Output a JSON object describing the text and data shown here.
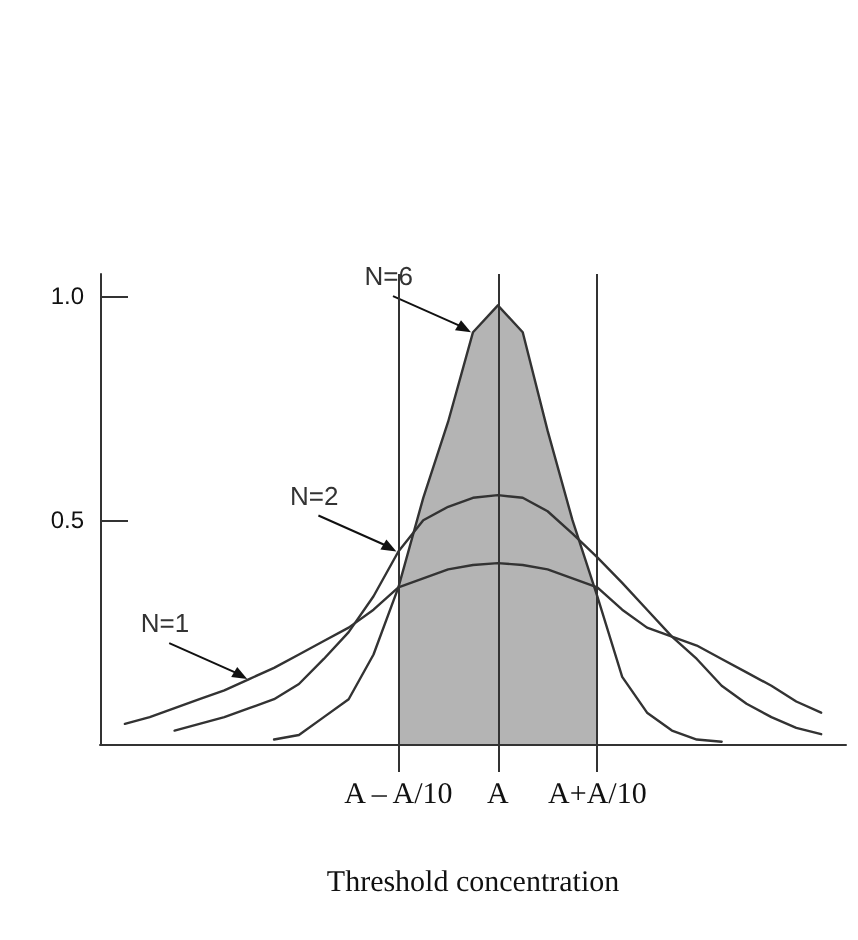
{
  "chart_data": {
    "type": "line",
    "xlabel": "Threshold concentration",
    "categories": [
      null,
      null,
      null,
      null,
      null,
      null,
      null,
      null,
      null,
      null,
      null,
      null,
      "A – A/10",
      null,
      null,
      null,
      "A",
      null,
      null,
      null,
      "A+A/10",
      null,
      null,
      null,
      null,
      null,
      null,
      null,
      null,
      null,
      null
    ],
    "ylim": [
      0,
      1.05
    ],
    "yticks": [
      {
        "value": 0.5,
        "label": "0.5"
      },
      {
        "value": 1.0,
        "label": "1.0"
      }
    ],
    "grid": false,
    "legend": false,
    "marker": "none",
    "line_style": "solid",
    "series": [
      {
        "type": "area",
        "color": "#b4b4b4",
        "values": [
          null,
          null,
          null,
          null,
          null,
          null,
          null,
          null,
          null,
          null,
          null,
          null,
          0.35,
          0.55,
          0.72,
          0.92,
          0.98,
          0.92,
          0.7,
          0.5,
          0.33,
          null,
          null,
          null,
          null,
          null,
          null,
          null,
          null,
          null,
          null
        ]
      },
      {
        "name": "N=6",
        "color": "#333333",
        "values": [
          null,
          null,
          null,
          null,
          null,
          null,
          null,
          0.01,
          0.02,
          0.06,
          0.1,
          0.2,
          0.35,
          0.55,
          0.72,
          0.92,
          0.98,
          0.92,
          0.7,
          0.5,
          0.33,
          0.15,
          0.07,
          0.03,
          0.01,
          0.005,
          null,
          null,
          null,
          null,
          null
        ]
      },
      {
        "name": "N=2",
        "color": "#333333",
        "values": [
          null,
          null,
          null,
          0.03,
          0.045,
          0.06,
          0.08,
          0.1,
          0.134,
          0.19,
          0.25,
          0.33,
          0.43,
          0.5,
          0.53,
          0.55,
          0.556,
          0.55,
          0.52,
          0.47,
          0.417,
          0.36,
          0.3,
          0.24,
          0.19,
          0.13,
          0.09,
          0.06,
          0.036,
          0.022,
          null
        ]
      },
      {
        "name": "N=1",
        "color": "#333333",
        "values": [
          null,
          0.045,
          0.06,
          0.08,
          0.1,
          0.12,
          0.145,
          0.17,
          0.2,
          0.23,
          0.26,
          0.3,
          0.35,
          0.37,
          0.39,
          0.4,
          0.404,
          0.4,
          0.39,
          0.37,
          0.35,
          0.3,
          0.26,
          0.24,
          0.22,
          0.19,
          0.16,
          0.13,
          0.095,
          0.07,
          null
        ]
      }
    ],
    "ref_lines": [
      {
        "axis": "x",
        "value": "A – A/10",
        "color": "#333333"
      },
      {
        "axis": "x",
        "value": "A",
        "color": "#333333"
      },
      {
        "axis": "x",
        "value": "A+A/10",
        "color": "#333333"
      }
    ]
  }
}
